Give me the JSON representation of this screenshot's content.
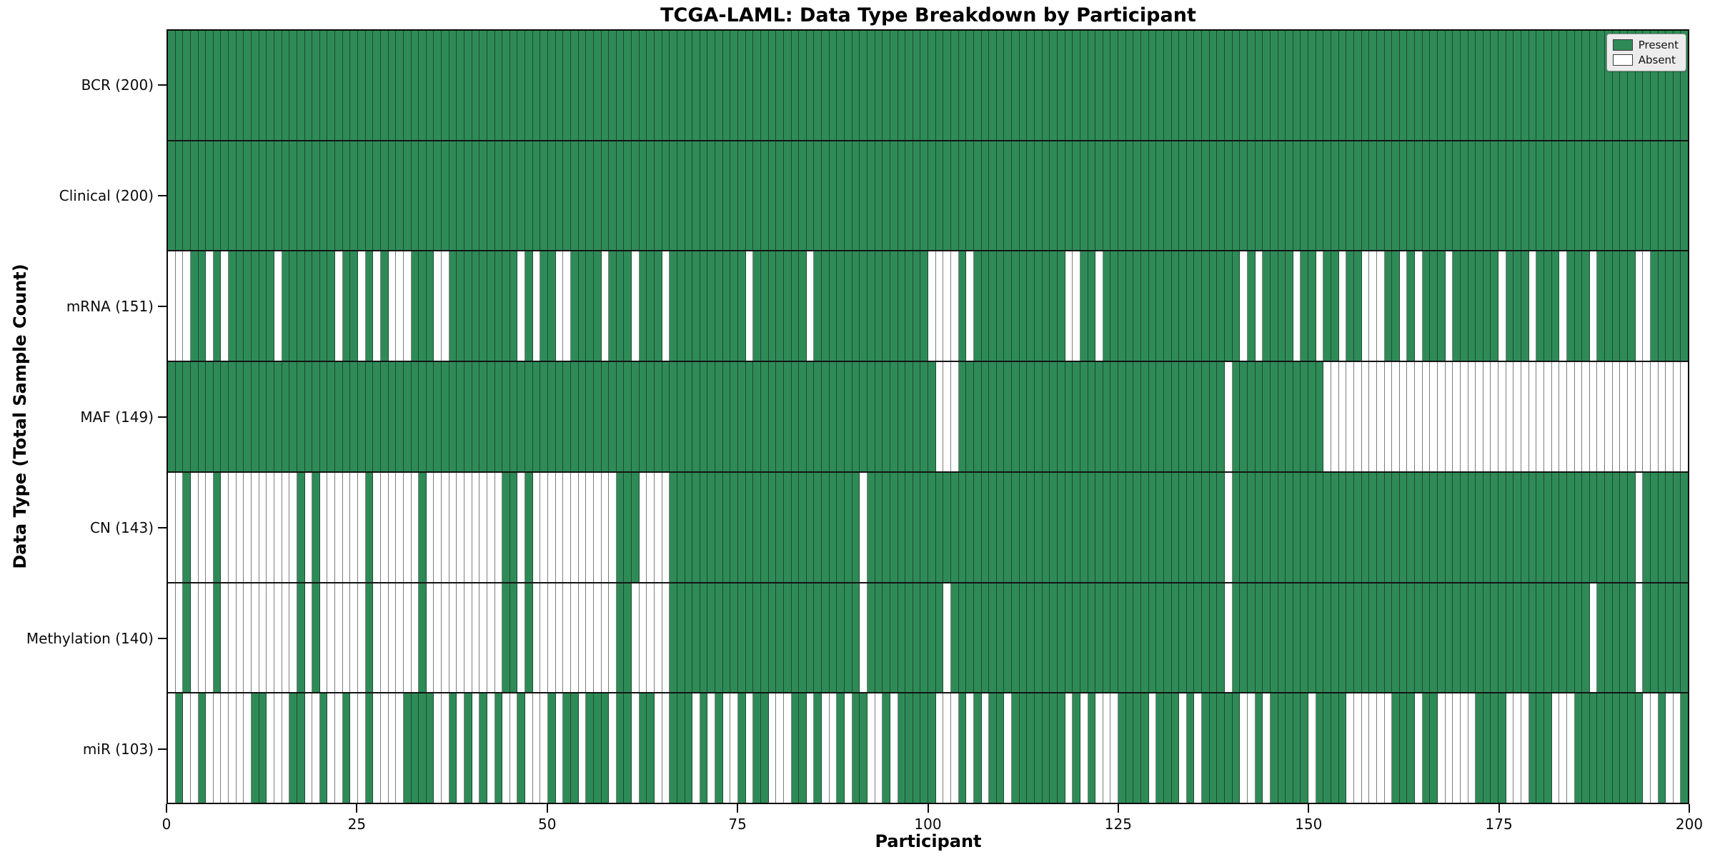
{
  "title": "TCGA-LAML: Data Type Breakdown by Participant",
  "x_axis_label": "Participant",
  "y_axis_label": "Data Type (Total Sample Count)",
  "legend": {
    "present_label": "Present",
    "absent_label": "Absent"
  },
  "colors": {
    "present": "#2E8B57",
    "absent": "#FFFFFF"
  },
  "chart_data": {
    "type": "heatmap",
    "title": "TCGA-LAML: Data Type Breakdown by Participant",
    "xlabel": "Participant",
    "ylabel": "Data Type (Total Sample Count)",
    "x_range": [
      0,
      200
    ],
    "x_ticks": [
      0,
      25,
      50,
      75,
      100,
      125,
      150,
      175,
      200
    ],
    "legend_entries": [
      "Present",
      "Absent"
    ],
    "legend_position": "upper right",
    "grid": false,
    "encoding": "pattern strings: one char per participant (index 0-199), 1=Present (green), 0=Absent (white)",
    "rows": [
      {
        "name": "BCR",
        "label": "BCR (200)",
        "total": 200,
        "pattern": "11111111111111111111111111111111111111111111111111111111111111111111111111111111111111111111111111111111111111111111111111111111111111111111111111111111111111111111111111111111111111111111111111111111"
      },
      {
        "name": "Clinical",
        "label": "Clinical (200)",
        "total": 200,
        "pattern": "11111111111111111111111111111111111111111111111111111111111111111111111111111111111111111111111111111111111111111111111111111111111111111111111111111111111111111111111111111111111111111111111111111111"
      },
      {
        "name": "mRNA",
        "label": "mRNA (151)",
        "total": 151,
        "pattern": "00011010111111011111110110101000111001111111110101100111101110111011111111110111111101111111111111110000101111111111110011011111111111111111101011110110110110001101011101111110111011101110111110011111"
      },
      {
        "name": "MAF",
        "label": "MAF (149)",
        "total": 149,
        "pattern": "11111111111111111111111111111111111111111111111111111111111111111111111111111111111111111111111111111000111111111111111111111111111111111110111111111111000000000000000000000000000000000000000000000000"
      },
      {
        "name": "CN",
        "label": "CN (143)",
        "total": 143,
        "pattern": "00100010000000000101000000100000010000000000110100000000000111000011111111111111111111111110111111111111111111111111111111111111111111111110111111111111111111111111111111111111111111111111111110111111111"
      },
      {
        "name": "Methylation",
        "label": "Methylation (140)",
        "total": 140,
        "pattern": "00100010000000000101000000100000010000000000110100000000000110000011111111111111111111111110111111111101111111111111111111111111111111111110111111111111111111111111111111111111111111111110111110111111111"
      },
      {
        "name": "miR",
        "label": "miR (103)",
        "total": 103,
        "pattern": "01001000000110001100100100100001111001010101001000101101110110110011101010010110001101001011001011111000101011011111110101000111101110101111100101111101111000000111011000001111000111000111111111001001"
      }
    ]
  }
}
